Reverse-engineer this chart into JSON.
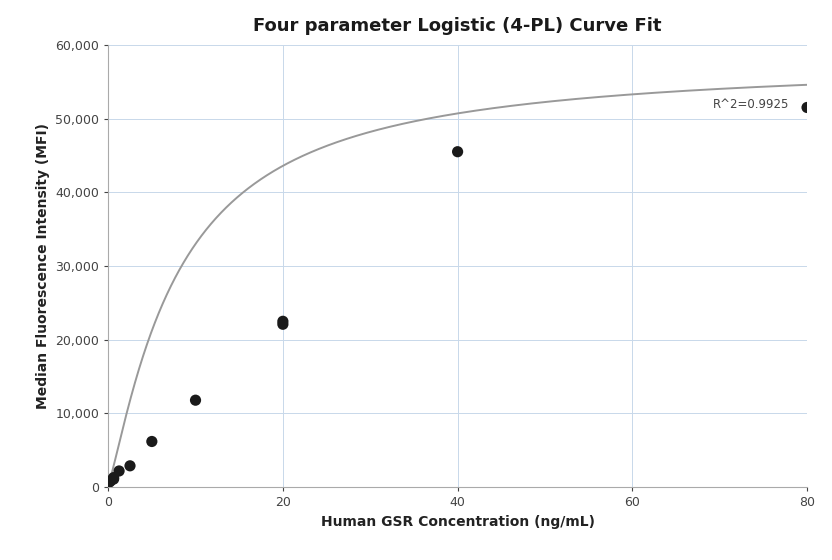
{
  "title": "Four parameter Logistic (4-PL) Curve Fit",
  "xlabel": "Human GSR Concentration (ng/mL)",
  "ylabel": "Median Fluorescence Intensity (MFI)",
  "scatter_x": [
    0.156,
    0.313,
    0.625,
    0.625,
    1.25,
    2.5,
    5.0,
    10.0,
    20.0,
    20.0,
    40.0,
    80.0
  ],
  "scatter_y": [
    700,
    900,
    1100,
    1300,
    2200,
    2900,
    6200,
    11800,
    22100,
    22500,
    45500,
    51500
  ],
  "r_squared": "R^2=0.9925",
  "xlim": [
    0,
    80
  ],
  "ylim": [
    0,
    60000
  ],
  "yticks": [
    0,
    10000,
    20000,
    30000,
    40000,
    50000,
    60000
  ],
  "xticks": [
    0,
    20,
    40,
    60,
    80
  ],
  "scatter_color": "#1a1a1a",
  "scatter_size": 65,
  "curve_color": "#999999",
  "background_color": "#ffffff",
  "grid_color": "#c8d8ea",
  "title_fontsize": 13,
  "label_fontsize": 10,
  "tick_fontsize": 9,
  "annot_fontsize": 8.5
}
